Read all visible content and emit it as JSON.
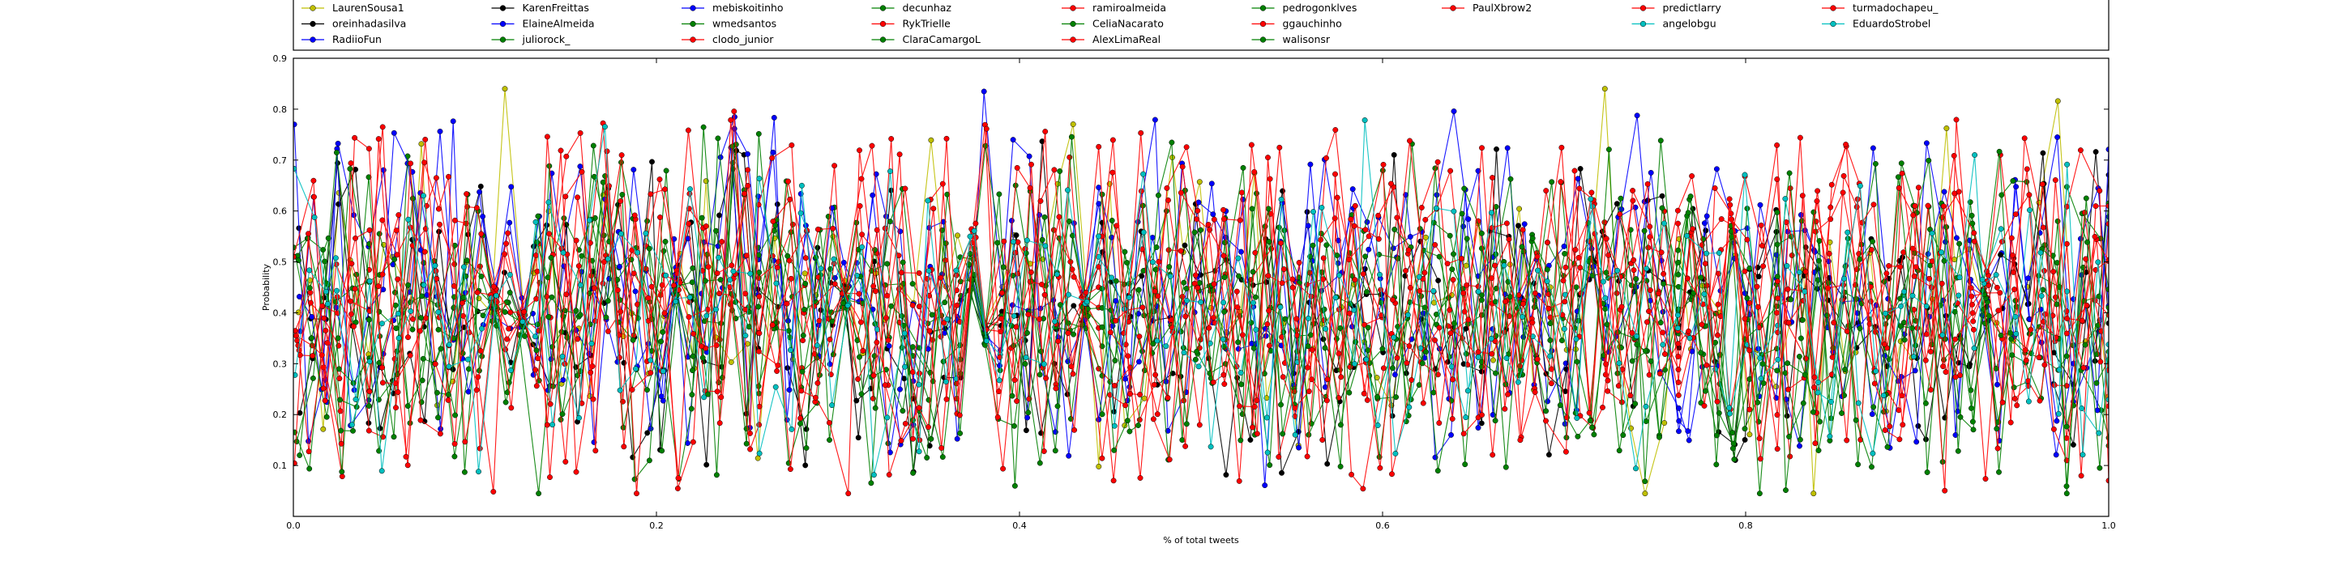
{
  "chart_data": {
    "type": "line",
    "title": "",
    "xlabel": "% of total tweets",
    "ylabel": "Probability",
    "xlim": [
      0.0,
      1.0
    ],
    "ylim": [
      0.0,
      0.9
    ],
    "x_ticks": [
      "0.0",
      "0.2",
      "0.4",
      "0.6",
      "0.8",
      "1.0"
    ],
    "y_ticks": [
      "0.1",
      "0.2",
      "0.3",
      "0.4",
      "0.5",
      "0.6",
      "0.7",
      "0.8",
      "0.9"
    ],
    "grid": false,
    "legend_position": "top",
    "legend_columns": 10,
    "points_per_series": 130,
    "series": [
      {
        "name": "LaurenSousa1",
        "color": "#bfbf00",
        "mean": 0.42,
        "spread": 0.4
      },
      {
        "name": "oreinhadasilva",
        "color": "#000000",
        "mean": 0.4,
        "spread": 0.34
      },
      {
        "name": "RadiioFun",
        "color": "#0000ff",
        "mean": 0.46,
        "spread": 0.38
      },
      {
        "name": "KarenFreittas",
        "color": "#000000",
        "mean": 0.42,
        "spread": 0.34
      },
      {
        "name": "ElaineAlmeida",
        "color": "#0000ff",
        "mean": 0.4,
        "spread": 0.36
      },
      {
        "name": "juliorock_",
        "color": "#008000",
        "mean": 0.38,
        "spread": 0.34
      },
      {
        "name": "mebiskoitinho",
        "color": "#0000ff",
        "mean": 0.42,
        "spread": 0.36
      },
      {
        "name": "wmedsantos",
        "color": "#008000",
        "mean": 0.4,
        "spread": 0.34
      },
      {
        "name": "clodo_junior",
        "color": "#ff0000",
        "mean": 0.42,
        "spread": 0.36
      },
      {
        "name": "decunhaz",
        "color": "#008000",
        "mean": 0.38,
        "spread": 0.34
      },
      {
        "name": "RykTrielle",
        "color": "#ff0000",
        "mean": 0.42,
        "spread": 0.36
      },
      {
        "name": "ClaraCamargoL",
        "color": "#008000",
        "mean": 0.4,
        "spread": 0.34
      },
      {
        "name": "ramiroalmeida",
        "color": "#ff0000",
        "mean": 0.42,
        "spread": 0.36
      },
      {
        "name": "CeliaNacarato",
        "color": "#008000",
        "mean": 0.4,
        "spread": 0.34
      },
      {
        "name": "AlexLimaReal",
        "color": "#ff0000",
        "mean": 0.42,
        "spread": 0.36
      },
      {
        "name": "pedrogonklves",
        "color": "#008000",
        "mean": 0.4,
        "spread": 0.34
      },
      {
        "name": "ggauchinho",
        "color": "#ff0000",
        "mean": 0.42,
        "spread": 0.36
      },
      {
        "name": "walisonsr",
        "color": "#008000",
        "mean": 0.4,
        "spread": 0.34
      },
      {
        "name": "PaulXbrow2",
        "color": "#ff0000",
        "mean": 0.42,
        "spread": 0.36
      },
      {
        "name": "predictlarry",
        "color": "#ff0000",
        "mean": 0.42,
        "spread": 0.36
      },
      {
        "name": "angelobgu",
        "color": "#00bfbf",
        "mean": 0.4,
        "spread": 0.36
      },
      {
        "name": "turmadochapeu_",
        "color": "#ff0000",
        "mean": 0.42,
        "spread": 0.36
      },
      {
        "name": "EduardoStrobel",
        "color": "#00bfbf",
        "mean": 0.4,
        "spread": 0.36
      }
    ]
  }
}
